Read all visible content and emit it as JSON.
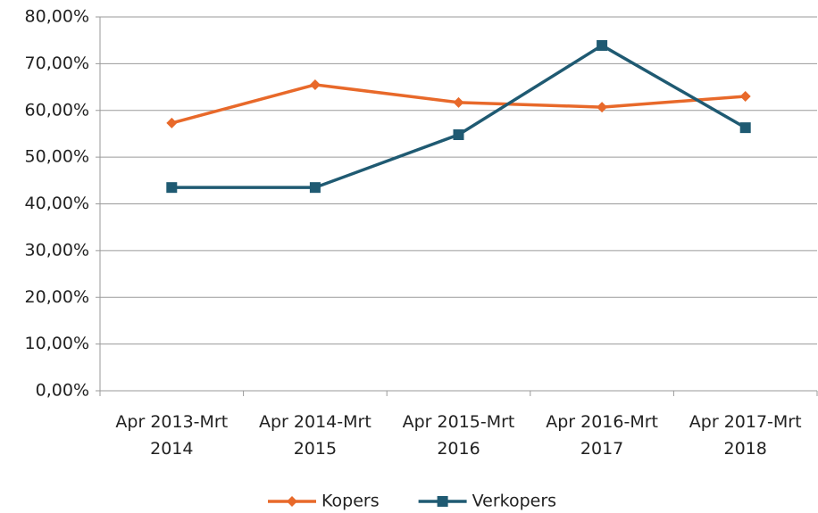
{
  "chart_data": {
    "type": "line",
    "categories": [
      "Apr 2013-Mrt 2014",
      "Apr 2014-Mrt 2015",
      "Apr 2015-Mrt 2016",
      "Apr 2016-Mrt 2017",
      "Apr 2017-Mrt 2018"
    ],
    "series": [
      {
        "name": "Kopers",
        "color": "#e8692a",
        "marker": "diamond",
        "values": [
          57.3,
          65.5,
          61.7,
          60.7,
          63.0
        ]
      },
      {
        "name": "Verkopers",
        "color": "#1f5a72",
        "marker": "square",
        "values": [
          43.5,
          43.5,
          54.8,
          73.9,
          56.3
        ]
      }
    ],
    "ylim": [
      0,
      80
    ],
    "yticks": [
      {
        "value": 0,
        "label": "0,00%"
      },
      {
        "value": 10,
        "label": "10,00%"
      },
      {
        "value": 20,
        "label": "20,00%"
      },
      {
        "value": 30,
        "label": "30,00%"
      },
      {
        "value": 40,
        "label": "40,00%"
      },
      {
        "value": 50,
        "label": "50,00%"
      },
      {
        "value": 60,
        "label": "60,00%"
      },
      {
        "value": 70,
        "label": "70,00%"
      },
      {
        "value": 80,
        "label": "80,00%"
      }
    ],
    "grid": true,
    "legend": "bottom"
  }
}
